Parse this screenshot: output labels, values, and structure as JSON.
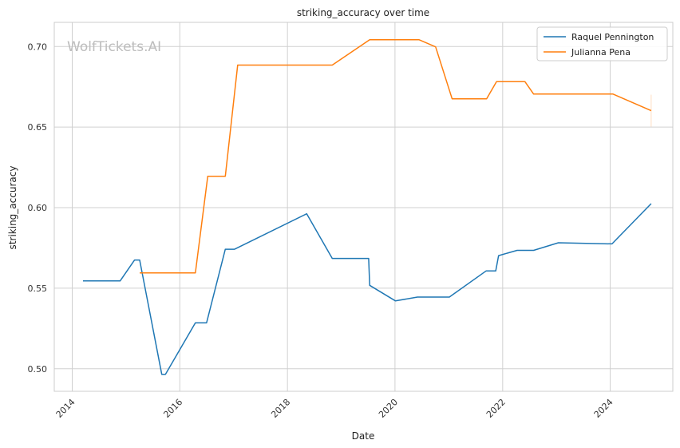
{
  "chart_data": {
    "type": "line",
    "title": "striking_accuracy over time",
    "xlabel": "Date",
    "ylabel": "striking_accuracy",
    "watermark": "WolfTickets.AI",
    "xlim": [
      "2013-09-01",
      "2025-03-01"
    ],
    "ylim": [
      0.486,
      0.715
    ],
    "x_ticks": [
      "2014-01-01",
      "2016-01-01",
      "2018-01-01",
      "2020-01-01",
      "2022-01-01",
      "2024-01-01"
    ],
    "x_tick_labels": [
      "2014",
      "2016",
      "2018",
      "2020",
      "2022",
      "2024"
    ],
    "y_ticks": [
      0.5,
      0.55,
      0.6,
      0.65,
      0.7
    ],
    "y_tick_labels": [
      "0.50",
      "0.55",
      "0.60",
      "0.65",
      "0.70"
    ],
    "grid": true,
    "legend_position": "top-right",
    "colors": {
      "blue": "#1f77b4",
      "orange": "#ff7f0e",
      "grid": "#d0d0d0",
      "axis": "#cccccc"
    },
    "series": [
      {
        "name": "Raquel Pennington",
        "color": "#1f77b4",
        "points": [
          [
            "2014-03-15",
            0.5545
          ],
          [
            "2014-11-22",
            0.5545
          ],
          [
            "2015-02-28",
            0.5675
          ],
          [
            "2015-04-04",
            0.5675
          ],
          [
            "2015-09-01",
            0.4965
          ],
          [
            "2015-09-26",
            0.4965
          ],
          [
            "2016-04-16",
            0.5285
          ],
          [
            "2016-07-01",
            0.5285
          ],
          [
            "2016-11-05",
            0.5742
          ],
          [
            "2017-01-07",
            0.5742
          ],
          [
            "2018-05-12",
            0.5962
          ],
          [
            "2018-11-01",
            0.5685
          ],
          [
            "2019-07-06",
            0.5685
          ],
          [
            "2019-07-13",
            0.5518
          ],
          [
            "2020-01-04",
            0.5421
          ],
          [
            "2020-06-01",
            0.5445
          ],
          [
            "2021-01-04",
            0.5445
          ],
          [
            "2021-09-10",
            0.5607
          ],
          [
            "2021-11-15",
            0.5607
          ],
          [
            "2021-12-04",
            0.5702
          ],
          [
            "2022-04-09",
            0.5735
          ],
          [
            "2022-07-30",
            0.5735
          ],
          [
            "2023-01-14",
            0.5782
          ],
          [
            "2024-01-13",
            0.5775
          ],
          [
            "2024-10-05",
            0.6025
          ]
        ]
      },
      {
        "name": "Julianna Pena",
        "color": "#ff7f0e",
        "points": [
          [
            "2015-04-04",
            0.5595
          ],
          [
            "2016-04-16",
            0.5595
          ],
          [
            "2016-07-09",
            0.6195
          ],
          [
            "2016-11-05",
            0.6195
          ],
          [
            "2017-01-28",
            0.6885
          ],
          [
            "2018-11-01",
            0.6885
          ],
          [
            "2019-07-13",
            0.7042
          ],
          [
            "2020-06-13",
            0.7042
          ],
          [
            "2020-10-03",
            0.6998
          ],
          [
            "2021-01-23",
            0.6675
          ],
          [
            "2021-09-14",
            0.6675
          ],
          [
            "2021-11-20",
            0.6782
          ],
          [
            "2022-06-01",
            0.6782
          ],
          [
            "2022-07-30",
            0.6705
          ],
          [
            "2024-01-20",
            0.6705
          ],
          [
            "2024-10-05",
            0.6602
          ]
        ]
      }
    ]
  }
}
